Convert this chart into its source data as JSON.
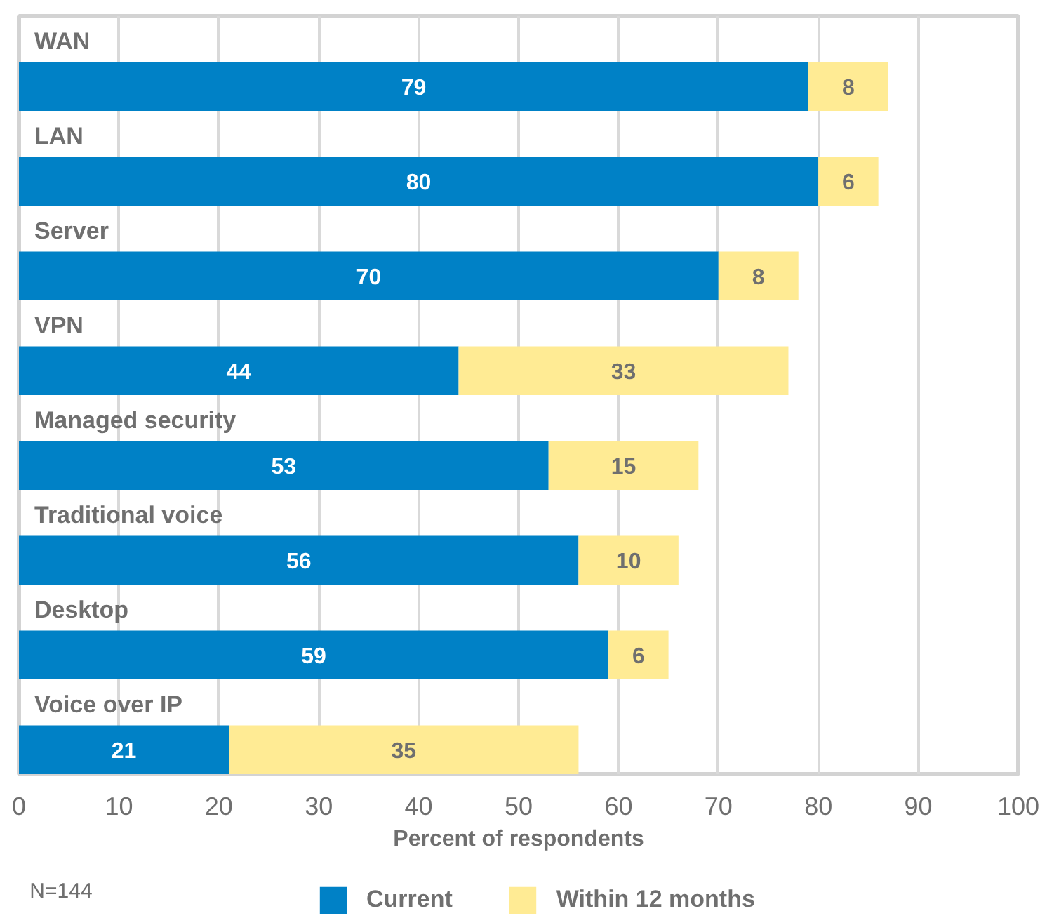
{
  "chart_data": {
    "type": "bar",
    "orientation": "horizontal",
    "stacked": true,
    "categories": [
      "WAN",
      "LAN",
      "Server",
      "VPN",
      "Managed security",
      "Traditional voice",
      "Desktop",
      "Voice over IP"
    ],
    "series": [
      {
        "name": "Current",
        "color": "#0081c6",
        "values": [
          79,
          80,
          70,
          44,
          53,
          56,
          59,
          21
        ]
      },
      {
        "name": "Within 12 months",
        "color": "#ffeb94",
        "values": [
          8,
          6,
          8,
          33,
          15,
          10,
          6,
          35
        ]
      }
    ],
    "xlabel": "Percent of respondents",
    "xlim": [
      0,
      100
    ],
    "xticks": [
      0,
      10,
      20,
      30,
      40,
      50,
      60,
      70,
      80,
      90,
      100
    ],
    "grid": "x",
    "legend": "bottom",
    "data_labels": true,
    "annotations": [
      "N=144"
    ]
  }
}
